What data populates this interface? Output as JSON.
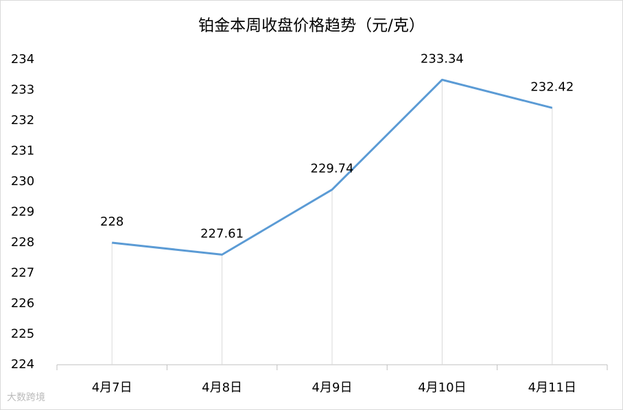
{
  "chart_data": {
    "type": "line",
    "title": "铂金本周收盘价格趋势（元/克）",
    "categories": [
      "4月7日",
      "4月8日",
      "4月9日",
      "4月10日",
      "4月11日"
    ],
    "series": [
      {
        "name": "铂金",
        "color": "#5b9bd5",
        "values": [
          228,
          227.61,
          229.74,
          233.34,
          232.42
        ]
      }
    ],
    "ylim": [
      224,
      234
    ],
    "yticks": [
      224,
      225,
      226,
      227,
      228,
      229,
      230,
      231,
      232,
      233,
      234
    ],
    "drop_lines": true,
    "grid": false,
    "legend": false
  },
  "watermark": "大数跨境"
}
